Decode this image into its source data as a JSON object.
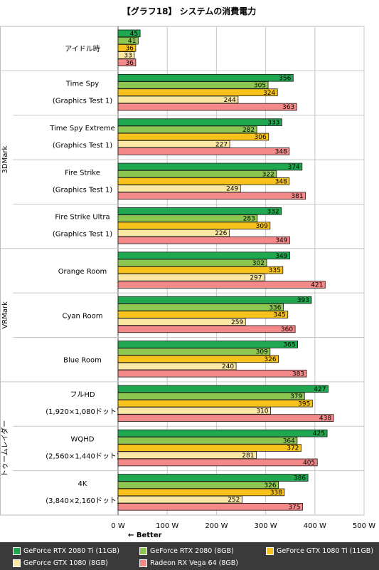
{
  "chart_data": {
    "type": "bar",
    "orientation": "horizontal",
    "title": "【グラフ18】 システムの消費電力",
    "unit": "W",
    "xlim": [
      0,
      500
    ],
    "x_ticks": [
      "0 W",
      "100 W",
      "200 W",
      "300 W",
      "400 W",
      "500 W"
    ],
    "axis_note": "← Better",
    "grid": true,
    "legend_position": "bottom",
    "series": [
      {
        "name": "GeForce RTX 2080 Ti (11GB)",
        "color": "#1fa84f"
      },
      {
        "name": "GeForce RTX 2080 (8GB)",
        "color": "#8dc650"
      },
      {
        "name": "GeForce GTX 1080 Ti (11GB)",
        "color": "#f8c21c"
      },
      {
        "name": "GeForce GTX 1080 (8GB)",
        "color": "#fbe8a4"
      },
      {
        "name": "Radeon RX Vega 64 (8GB)",
        "color": "#f4898a"
      }
    ],
    "groups": [
      {
        "name": "",
        "categories": [
          {
            "label": [
              "アイドル時"
            ],
            "values": [
              45,
              41,
              36,
              33,
              36
            ]
          }
        ]
      },
      {
        "name": "3DMark",
        "categories": [
          {
            "label": [
              "Time Spy",
              "(Graphics Test 1)"
            ],
            "values": [
              356,
              305,
              324,
              244,
              363
            ]
          },
          {
            "label": [
              "Time Spy Extreme",
              "(Graphics Test 1)"
            ],
            "values": [
              333,
              282,
              306,
              227,
              348
            ]
          },
          {
            "label": [
              "Fire Strike",
              "(Graphics Test 1)"
            ],
            "values": [
              374,
              322,
              348,
              249,
              381
            ]
          },
          {
            "label": [
              "Fire Strike Ultra",
              "(Graphics Test 1)"
            ],
            "values": [
              332,
              283,
              309,
              226,
              349
            ]
          }
        ]
      },
      {
        "name": "VRMark",
        "categories": [
          {
            "label": [
              "Orange Room"
            ],
            "values": [
              349,
              302,
              335,
              297,
              421
            ]
          },
          {
            "label": [
              "Cyan Room"
            ],
            "values": [
              393,
              336,
              345,
              259,
              360
            ]
          },
          {
            "label": [
              "Blue Room"
            ],
            "values": [
              365,
              309,
              326,
              240,
              383
            ]
          }
        ]
      },
      {
        "name": "トゥームレイダー",
        "categories": [
          {
            "label": [
              "フルHD",
              "(1,920×1,080ドット)"
            ],
            "values": [
              427,
              379,
              395,
              310,
              438
            ]
          },
          {
            "label": [
              "WQHD",
              "(2,560×1,440ドット)"
            ],
            "values": [
              425,
              364,
              372,
              281,
              405
            ]
          },
          {
            "label": [
              "4K",
              "(3,840×2,160ドット)"
            ],
            "values": [
              386,
              326,
              338,
              252,
              375
            ]
          }
        ]
      }
    ]
  }
}
